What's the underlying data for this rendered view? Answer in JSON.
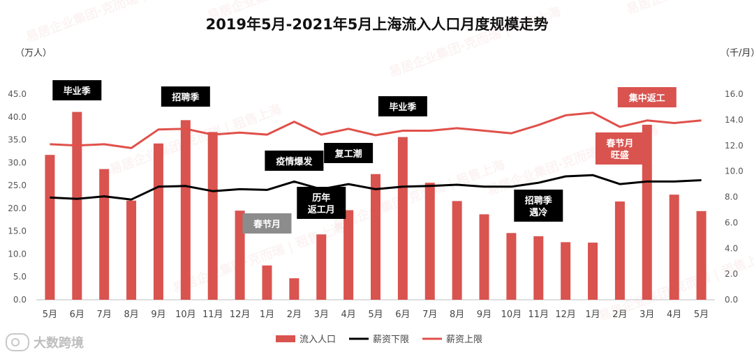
{
  "chart_data": {
    "type": "bar",
    "title": "2019年5月-2021年5月上海流入人口月度规模走势",
    "categories": [
      "5月",
      "6月",
      "7月",
      "8月",
      "9月",
      "10月",
      "11月",
      "12月",
      "1月",
      "2月",
      "3月",
      "4月",
      "5月",
      "6月",
      "7月",
      "8月",
      "9月",
      "10月",
      "11月",
      "12月",
      "1月",
      "2月",
      "3月",
      "4月",
      "5月"
    ],
    "left_axis": {
      "unit_label": "（万人）",
      "min": 0,
      "max": 45,
      "step": 5,
      "ticks": [
        "0.0",
        "5.0",
        "10.0",
        "15.0",
        "20.0",
        "25.0",
        "30.0",
        "35.0",
        "40.0",
        "45.0"
      ]
    },
    "right_axis": {
      "unit_label": "（千/月）",
      "min": 0,
      "max": 16,
      "step": 2,
      "ticks": [
        "0.0",
        "2.0",
        "4.0",
        "6.0",
        "8.0",
        "10.0",
        "12.0",
        "14.0",
        "16.0"
      ]
    },
    "series": [
      {
        "name": "流入人口",
        "type": "bar",
        "axis": "left",
        "color": "#d9534f",
        "values": [
          31.7,
          41.1,
          28.6,
          21.7,
          34.2,
          39.3,
          36.7,
          19.5,
          7.5,
          4.7,
          14.3,
          19.6,
          27.5,
          35.6,
          25.6,
          21.6,
          18.7,
          14.6,
          13.9,
          12.6,
          12.5,
          21.5,
          38.3,
          23.0,
          19.4
        ]
      },
      {
        "name": "薪资下限",
        "type": "line",
        "axis": "right",
        "color": "#000000",
        "values": [
          7.95,
          7.85,
          8.05,
          7.8,
          8.8,
          8.85,
          8.45,
          8.6,
          8.55,
          9.2,
          8.6,
          9.0,
          8.6,
          8.8,
          8.85,
          8.95,
          8.8,
          8.8,
          9.1,
          9.6,
          9.7,
          9.0,
          9.2,
          9.2,
          9.3
        ]
      },
      {
        "name": "薪资上限",
        "type": "line",
        "axis": "right",
        "color": "#e0504a",
        "values": [
          12.1,
          12.0,
          12.1,
          11.8,
          13.25,
          13.3,
          12.85,
          13.0,
          12.85,
          13.85,
          12.85,
          13.3,
          12.8,
          13.15,
          13.15,
          13.35,
          13.15,
          12.95,
          13.6,
          14.35,
          14.55,
          13.45,
          13.95,
          13.75,
          13.95
        ]
      }
    ],
    "annotations": [
      {
        "text": "毕业季",
        "style": "black",
        "month_index": 1
      },
      {
        "text": "招聘季",
        "style": "black",
        "month_index": 5
      },
      {
        "text": "疫情爆发",
        "style": "black",
        "month_index": 9
      },
      {
        "text": "春节月",
        "style": "gray",
        "month_index": 8
      },
      {
        "text": "历年\n返工月",
        "style": "black",
        "month_index": 10
      },
      {
        "text": "复工潮",
        "style": "black",
        "month_index": 11
      },
      {
        "text": "毕业季",
        "style": "black",
        "month_index": 13
      },
      {
        "text": "招聘季\n遇冷",
        "style": "black",
        "month_index": 18
      },
      {
        "text": "集中返工",
        "style": "red",
        "month_index": 22
      },
      {
        "text": "春节月\n旺盛",
        "style": "red",
        "month_index": 21
      }
    ]
  },
  "watermark": {
    "text": "易居企业集团·克而瑞 | 租售上海"
  },
  "brand": {
    "text": "大数跨境"
  }
}
